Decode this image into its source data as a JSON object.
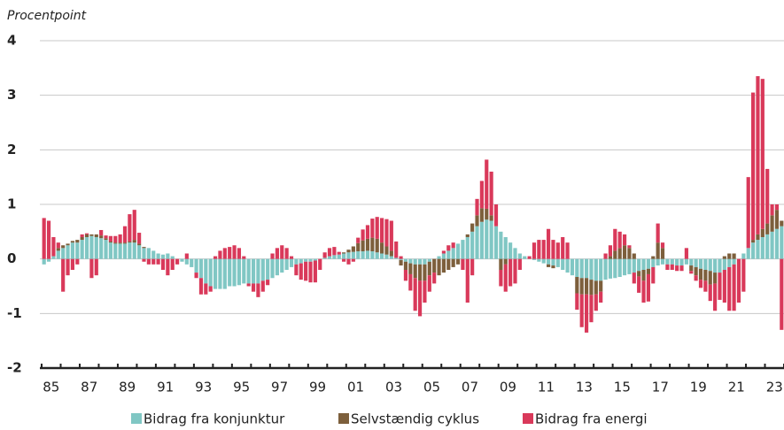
{
  "chart_data": {
    "type": "bar",
    "stacked": true,
    "y_label": "Procentpoint",
    "categories": [
      "85",
      null,
      null,
      null,
      null,
      null,
      null,
      null,
      "87",
      null,
      null,
      null,
      null,
      null,
      null,
      null,
      "89",
      null,
      null,
      null,
      null,
      null,
      null,
      null,
      "91",
      null,
      null,
      null,
      null,
      null,
      null,
      null,
      "93",
      null,
      null,
      null,
      null,
      null,
      null,
      null,
      "95",
      null,
      null,
      null,
      null,
      null,
      null,
      null,
      "97",
      null,
      null,
      null,
      null,
      null,
      null,
      null,
      "99",
      null,
      null,
      null,
      null,
      null,
      null,
      null,
      "01",
      null,
      null,
      null,
      null,
      null,
      null,
      null,
      "03",
      null,
      null,
      null,
      null,
      null,
      null,
      null,
      "05",
      null,
      null,
      null,
      null,
      null,
      null,
      null,
      "07",
      null,
      null,
      null,
      null,
      null,
      null,
      null,
      "09",
      null,
      null,
      null,
      null,
      null,
      null,
      null,
      "11",
      null,
      null,
      null,
      null,
      null,
      null,
      null,
      "13",
      null,
      null,
      null,
      null,
      null,
      null,
      null,
      "15",
      null,
      null,
      null,
      null,
      null,
      null,
      null,
      "17",
      null,
      null,
      null,
      null,
      null,
      null,
      null,
      "19",
      null,
      null,
      null,
      null,
      null,
      null,
      null,
      "21",
      null,
      null,
      null,
      null,
      null,
      null,
      null,
      "23",
      null,
      null,
      null
    ],
    "series": [
      {
        "name": "Bidrag fra konjunktur",
        "color": "#80c7c4",
        "values": [
          -0.1,
          -0.05,
          0.05,
          0.15,
          0.2,
          0.25,
          0.3,
          0.3,
          0.35,
          0.4,
          0.42,
          0.4,
          0.38,
          0.35,
          0.3,
          0.28,
          0.28,
          0.28,
          0.3,
          0.3,
          0.25,
          0.2,
          0.2,
          0.15,
          0.1,
          0.08,
          0.1,
          0.05,
          0,
          -0.05,
          -0.1,
          -0.15,
          -0.25,
          -0.35,
          -0.45,
          -0.5,
          -0.55,
          -0.55,
          -0.55,
          -0.5,
          -0.5,
          -0.48,
          -0.45,
          -0.45,
          -0.45,
          -0.45,
          -0.4,
          -0.38,
          -0.35,
          -0.3,
          -0.25,
          -0.2,
          -0.15,
          -0.1,
          -0.08,
          -0.05,
          -0.05,
          -0.03,
          0,
          0.02,
          0.05,
          0.07,
          0.08,
          0.1,
          0.12,
          0.13,
          0.14,
          0.14,
          0.15,
          0.14,
          0.12,
          0.1,
          0.08,
          0.05,
          0.02,
          -0.02,
          -0.05,
          -0.08,
          -0.1,
          -0.1,
          -0.1,
          -0.05,
          0,
          0.05,
          0.1,
          0.15,
          0.2,
          0.28,
          0.35,
          0.4,
          0.5,
          0.6,
          0.68,
          0.72,
          0.7,
          0.6,
          0.5,
          0.4,
          0.3,
          0.2,
          0.1,
          0.05,
          0,
          -0.02,
          -0.05,
          -0.08,
          -0.1,
          -0.12,
          -0.15,
          -0.2,
          -0.25,
          -0.3,
          -0.33,
          -0.35,
          -0.35,
          -0.38,
          -0.4,
          -0.4,
          -0.38,
          -0.36,
          -0.35,
          -0.33,
          -0.3,
          -0.28,
          -0.25,
          -0.22,
          -0.2,
          -0.18,
          -0.15,
          -0.12,
          -0.1,
          -0.1,
          -0.1,
          -0.12,
          -0.12,
          -0.1,
          -0.12,
          -0.15,
          -0.18,
          -0.2,
          -0.22,
          -0.25,
          -0.25,
          -0.2,
          -0.15,
          -0.1,
          0,
          0.1,
          0.2,
          0.3,
          0.35,
          0.4,
          0.45,
          0.5,
          0.55,
          0.6
        ]
      },
      {
        "name": "Selvstændig cyklus",
        "color": "#7d5f3c",
        "values": [
          0,
          0,
          0,
          0.05,
          0.05,
          0.03,
          0.03,
          0.05,
          0.05,
          0.05,
          0.03,
          0.05,
          0.05,
          0.03,
          0.02,
          0.02,
          0.02,
          0.02,
          0.02,
          0.05,
          0.03,
          0.02,
          0,
          0,
          0,
          0,
          0,
          0,
          0,
          0,
          0,
          0,
          0,
          0,
          0,
          0,
          0,
          0,
          0,
          0,
          0,
          0,
          0,
          0,
          0,
          0,
          0,
          0,
          0,
          0,
          0,
          0,
          0,
          0,
          0,
          0,
          0,
          0,
          0,
          0,
          0,
          0,
          0,
          0.02,
          0.05,
          0.1,
          0.15,
          0.2,
          0.22,
          0.25,
          0.25,
          0.2,
          0.15,
          0.1,
          0,
          -0.1,
          -0.15,
          -0.2,
          -0.25,
          -0.3,
          -0.3,
          -0.25,
          -0.25,
          -0.3,
          -0.25,
          -0.2,
          -0.15,
          -0.1,
          0,
          0.05,
          0.15,
          0.2,
          0.25,
          0.2,
          0.1,
          0,
          -0.2,
          -0.1,
          0,
          0,
          0,
          0,
          0,
          0,
          0,
          0,
          -0.05,
          -0.05,
          0,
          0,
          0,
          0,
          -0.3,
          -0.3,
          -0.3,
          -0.28,
          -0.25,
          -0.2,
          0,
          0.05,
          0.15,
          0.2,
          0.25,
          0.2,
          0.1,
          -0.1,
          -0.2,
          -0.1,
          0.05,
          0.3,
          0.2,
          0,
          0,
          0,
          0,
          0,
          -0.1,
          -0.15,
          -0.2,
          -0.2,
          -0.25,
          -0.2,
          0,
          0.05,
          0.1,
          0.1,
          0,
          0,
          0,
          0.05,
          0.1,
          0.15,
          0.2,
          0.3,
          0.35,
          0.1
        ]
      },
      {
        "name": "Bidrag fra energi",
        "color": "#d9395a",
        "values": [
          0.75,
          0.7,
          0.35,
          0.1,
          -0.6,
          -0.3,
          -0.2,
          -0.1,
          0.05,
          0.02,
          -0.35,
          -0.3,
          0.1,
          0.05,
          0.1,
          0.12,
          0.15,
          0.3,
          0.5,
          0.55,
          0.2,
          -0.05,
          -0.1,
          -0.1,
          -0.1,
          -0.2,
          -0.3,
          -0.2,
          -0.1,
          0,
          0.1,
          0,
          -0.1,
          -0.3,
          -0.2,
          -0.1,
          0.05,
          0.15,
          0.2,
          0.22,
          0.25,
          0.2,
          0.05,
          -0.05,
          -0.15,
          -0.25,
          -0.2,
          -0.1,
          0.1,
          0.2,
          0.25,
          0.2,
          0.05,
          -0.2,
          -0.3,
          -0.35,
          -0.38,
          -0.4,
          -0.2,
          0.1,
          0.15,
          0.15,
          0.05,
          -0.05,
          -0.1,
          -0.05,
          0.1,
          0.2,
          0.25,
          0.35,
          0.4,
          0.45,
          0.5,
          0.55,
          0.3,
          0.05,
          -0.2,
          -0.3,
          -0.6,
          -0.65,
          -0.4,
          -0.3,
          -0.2,
          0,
          0.05,
          0.1,
          0.1,
          0,
          -0.2,
          -0.8,
          -0.3,
          0.3,
          0.5,
          0.9,
          0.8,
          0.4,
          -0.3,
          -0.5,
          -0.5,
          -0.45,
          -0.2,
          0,
          0.05,
          0.3,
          0.35,
          0.35,
          0.55,
          0.35,
          0.3,
          0.4,
          0.3,
          0,
          -0.3,
          -0.6,
          -0.7,
          -0.5,
          -0.3,
          -0.2,
          0.1,
          0.2,
          0.4,
          0.3,
          0.2,
          0.05,
          -0.2,
          -0.3,
          -0.4,
          -0.5,
          -0.3,
          0.35,
          0.1,
          -0.1,
          -0.1,
          -0.1,
          -0.1,
          0.2,
          -0.05,
          -0.1,
          -0.15,
          -0.2,
          -0.3,
          -0.5,
          -0.5,
          -0.6,
          -0.8,
          -0.85,
          -0.8,
          -0.6,
          1.3,
          2.7,
          2.9,
          2.75,
          1.0,
          0.2,
          0.1,
          -1.3
        ]
      }
    ],
    "ylim": [
      -2,
      4
    ],
    "yticks": [
      -2,
      -1,
      0,
      1,
      2,
      3,
      4
    ],
    "grid": true,
    "legend": "bottom"
  }
}
